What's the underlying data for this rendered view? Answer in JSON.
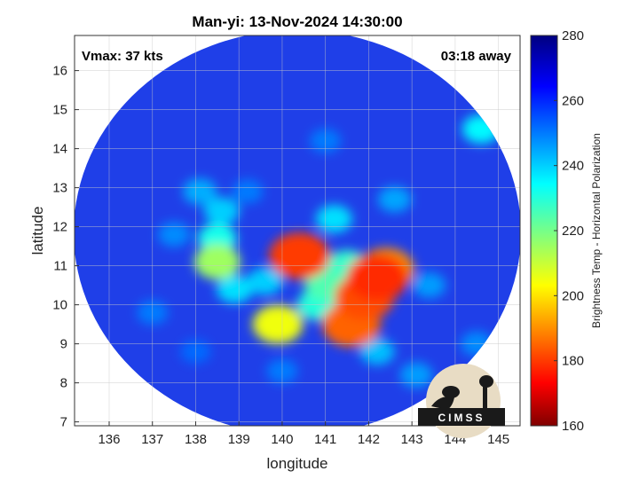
{
  "title": "Man-yi: 13-Nov-2024 14:30:00",
  "vmax_text": "Vmax: 37 kts",
  "away_text": "03:18 away",
  "x_axis": {
    "label": "longitude",
    "min": 135.2,
    "max": 145.5,
    "ticks": [
      "136",
      "137",
      "138",
      "139",
      "140",
      "141",
      "142",
      "143",
      "144",
      "145"
    ]
  },
  "y_axis": {
    "label": "latitude",
    "min": 6.9,
    "max": 16.9,
    "ticks": [
      "7",
      "8",
      "9",
      "10",
      "11",
      "12",
      "13",
      "14",
      "15",
      "16"
    ]
  },
  "colorbar": {
    "label": "Brightness Temp - Horizontal Polarization",
    "min": 160,
    "max": 280,
    "ticks": [
      "160",
      "180",
      "200",
      "220",
      "240",
      "260",
      "280"
    ],
    "colormap": "jet"
  },
  "logo": {
    "text": "CIMSS",
    "background": "#e8dcc4",
    "foreground": "#1a1a1a"
  },
  "colors": {
    "swath_background": "#1f3fe8",
    "outside_swath": "#ffffff",
    "grid": "#c8c8c8"
  },
  "chart_data": {
    "type": "heatmap",
    "title": "Man-yi: 13-Nov-2024 14:30:00",
    "xlabel": "longitude",
    "ylabel": "latitude",
    "xlim": [
      135.2,
      145.5
    ],
    "ylim": [
      6.9,
      16.9
    ],
    "clim": [
      160,
      280
    ],
    "colorbar_label": "Brightness Temp - Horizontal Polarization",
    "swath_center": [
      140.2,
      11.8
    ],
    "features": [
      {
        "lon": 142.2,
        "lat": 10.7,
        "bt": 178
      },
      {
        "lon": 141.9,
        "lat": 10.2,
        "bt": 182
      },
      {
        "lon": 141.6,
        "lat": 9.5,
        "bt": 185
      },
      {
        "lon": 142.4,
        "lat": 10.9,
        "bt": 190
      },
      {
        "lon": 140.4,
        "lat": 11.25,
        "bt": 180
      },
      {
        "lon": 139.9,
        "lat": 9.5,
        "bt": 205
      },
      {
        "lon": 141.0,
        "lat": 10.5,
        "bt": 225
      },
      {
        "lon": 140.8,
        "lat": 10.0,
        "bt": 230
      },
      {
        "lon": 141.5,
        "lat": 11.0,
        "bt": 228
      },
      {
        "lon": 138.5,
        "lat": 11.1,
        "bt": 215
      },
      {
        "lon": 138.5,
        "lat": 11.7,
        "bt": 232
      },
      {
        "lon": 138.9,
        "lat": 10.4,
        "bt": 238
      },
      {
        "lon": 139.6,
        "lat": 10.6,
        "bt": 240
      },
      {
        "lon": 138.6,
        "lat": 12.4,
        "bt": 240
      },
      {
        "lon": 138.1,
        "lat": 12.9,
        "bt": 244
      },
      {
        "lon": 141.2,
        "lat": 12.2,
        "bt": 238
      },
      {
        "lon": 142.6,
        "lat": 12.7,
        "bt": 245
      },
      {
        "lon": 143.4,
        "lat": 10.5,
        "bt": 246
      },
      {
        "lon": 142.2,
        "lat": 8.8,
        "bt": 242
      },
      {
        "lon": 143.1,
        "lat": 8.2,
        "bt": 246
      },
      {
        "lon": 144.5,
        "lat": 9.0,
        "bt": 248
      },
      {
        "lon": 144.6,
        "lat": 14.5,
        "bt": 235
      },
      {
        "lon": 139.2,
        "lat": 12.9,
        "bt": 250
      },
      {
        "lon": 137.5,
        "lat": 11.8,
        "bt": 248
      },
      {
        "lon": 137.0,
        "lat": 9.8,
        "bt": 250
      },
      {
        "lon": 140.0,
        "lat": 8.3,
        "bt": 250
      },
      {
        "lon": 138.0,
        "lat": 8.8,
        "bt": 252
      },
      {
        "lon": 141.0,
        "lat": 14.2,
        "bt": 250
      }
    ]
  }
}
